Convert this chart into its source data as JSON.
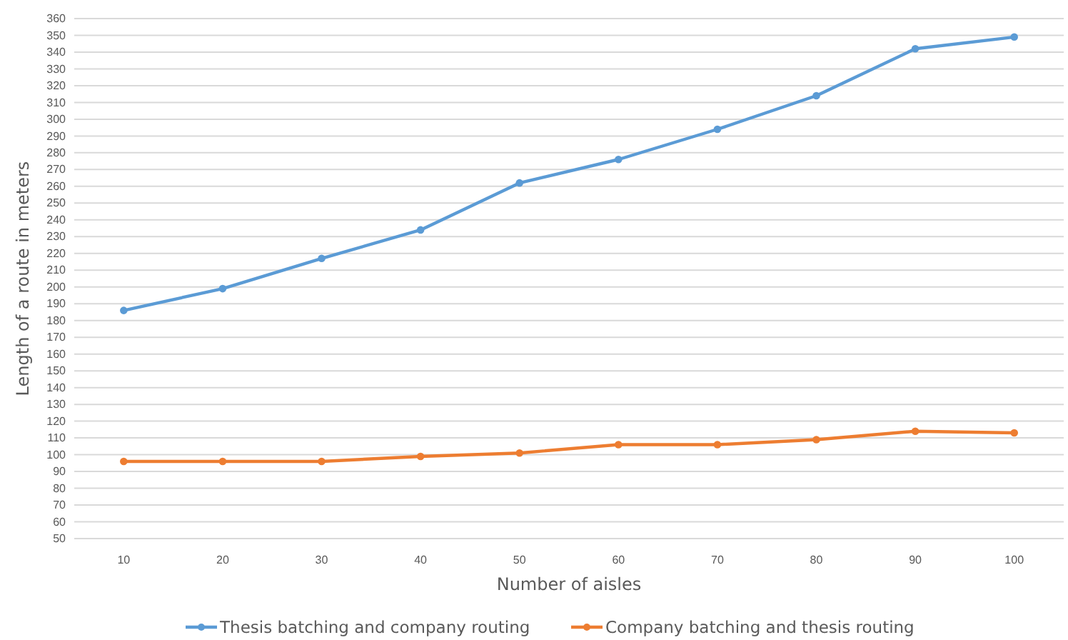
{
  "chart_data": {
    "type": "line",
    "xlabel": "Number of aisles",
    "ylabel": "Length of a route in meters",
    "categories": [
      "10",
      "20",
      "30",
      "40",
      "50",
      "60",
      "70",
      "80",
      "90",
      "100"
    ],
    "series": [
      {
        "name": "Thesis batching and company routing",
        "color": "#5b9bd5",
        "values": [
          186,
          199,
          217,
          234,
          262,
          276,
          294,
          314,
          342,
          349
        ]
      },
      {
        "name": "Company batching and thesis routing",
        "color": "#ed7d31",
        "values": [
          96,
          96,
          96,
          99,
          101,
          106,
          106,
          109,
          114,
          113
        ]
      }
    ],
    "ylim": [
      50,
      360
    ],
    "yticks": [
      50,
      60,
      70,
      80,
      90,
      100,
      110,
      120,
      130,
      140,
      150,
      160,
      170,
      180,
      190,
      200,
      210,
      220,
      230,
      240,
      250,
      260,
      270,
      280,
      290,
      300,
      310,
      320,
      330,
      340,
      350,
      360
    ],
    "grid": "y",
    "legend": "bottom",
    "marker": "circle",
    "line_style": "solid"
  }
}
